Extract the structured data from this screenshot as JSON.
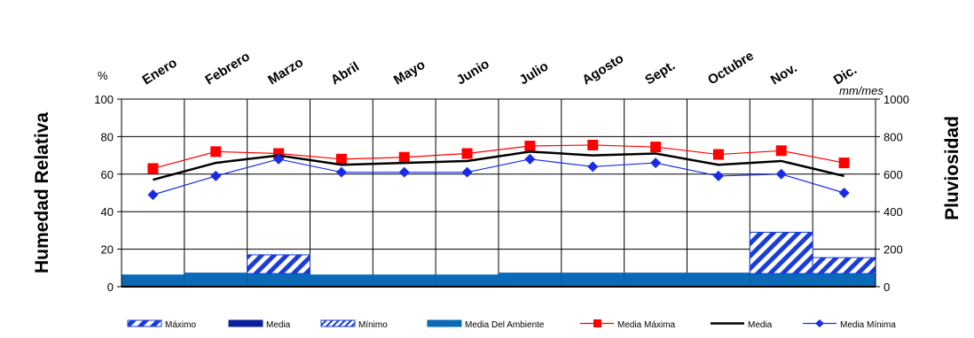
{
  "chart_data": {
    "type": "bar",
    "categories": [
      "Enero",
      "Febrero",
      "Marzo",
      "Abril",
      "Mayo",
      "Junio",
      "Julio",
      "Agosto",
      "Sept.",
      "Octubre",
      "Nov.",
      "Dic."
    ],
    "left_axis": {
      "label": "Humedad Relativa",
      "unit": "%",
      "range": [
        0,
        100
      ],
      "ticks": [
        0,
        20,
        40,
        60,
        80,
        100
      ]
    },
    "right_axis": {
      "label": "Pluviosidad",
      "unit": "mm/mes",
      "range": [
        0,
        1000
      ],
      "ticks": [
        0,
        200,
        400,
        600,
        800,
        1000
      ]
    },
    "grid": true,
    "legend_position": "bottom",
    "bar_series": [
      {
        "name": "Máximo",
        "axis": "right",
        "pattern": "hatch-wide",
        "color": "#1a3cd8",
        "values": [
          0,
          0,
          100,
          0,
          0,
          0,
          0,
          0,
          0,
          0,
          220,
          85
        ]
      },
      {
        "name": "Media",
        "axis": "right",
        "pattern": "solid",
        "color": "#0a1f9e",
        "values": [
          0,
          0,
          0,
          0,
          0,
          0,
          0,
          0,
          0,
          0,
          0,
          0
        ]
      },
      {
        "name": "Mínimo",
        "axis": "right",
        "pattern": "hatch-fine",
        "color": "#1a3cd8",
        "values": [
          0,
          0,
          0,
          0,
          0,
          0,
          0,
          0,
          0,
          0,
          0,
          0
        ]
      },
      {
        "name": "Media Del Ambiente",
        "axis": "right",
        "pattern": "solid",
        "color": "#0a6ab8",
        "values": [
          65,
          75,
          70,
          65,
          65,
          65,
          75,
          75,
          75,
          75,
          70,
          70
        ]
      }
    ],
    "line_series": [
      {
        "name": "Media Máxima",
        "axis": "left",
        "color": "#ff0000",
        "marker": "square",
        "values": [
          63,
          72,
          71,
          68,
          69,
          71,
          75,
          75.5,
          74.5,
          70.5,
          72.5,
          66
        ]
      },
      {
        "name": "Media",
        "axis": "left",
        "color": "#000000",
        "marker": "none",
        "values": [
          57,
          66,
          70,
          65,
          66,
          67,
          72,
          70,
          71,
          65,
          67,
          59
        ]
      },
      {
        "name": "Media Mínima",
        "axis": "left",
        "color": "#1a2be8",
        "marker": "diamond",
        "values": [
          49,
          59,
          68,
          61,
          61,
          61,
          68,
          64,
          66,
          59,
          60,
          50
        ]
      }
    ],
    "legend": [
      {
        "name": "Máximo",
        "label": "Máximo",
        "kind": "bar",
        "pattern": "hatch-wide",
        "color": "#1a3cd8"
      },
      {
        "name": "Media",
        "label": "Media",
        "kind": "bar",
        "pattern": "solid",
        "color": "#0a1f9e"
      },
      {
        "name": "Mínimo",
        "label": "Mínimo",
        "kind": "bar",
        "pattern": "hatch-fine",
        "color": "#1a3cd8"
      },
      {
        "name": "Media Del Ambiente",
        "label": "Media Del Ambiente",
        "kind": "bar",
        "pattern": "solid",
        "color": "#0a6ab8"
      },
      {
        "name": "Media Máxima",
        "label": "Media Máxima",
        "kind": "line",
        "marker": "square",
        "color": "#ff0000"
      },
      {
        "name": "Media",
        "label": "Media",
        "kind": "line",
        "marker": "none",
        "color": "#000000"
      },
      {
        "name": "Media Mínima",
        "label": "Media Mínima",
        "kind": "line",
        "marker": "diamond",
        "color": "#1a2be8"
      }
    ]
  }
}
